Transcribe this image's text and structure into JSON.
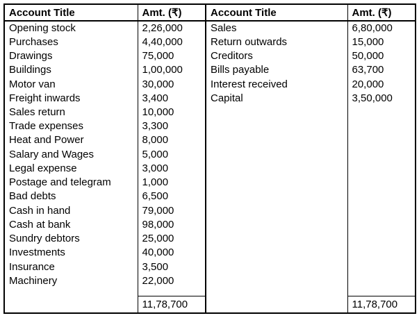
{
  "table": {
    "border_color": "#000000",
    "text_color": "#000000",
    "background_color": "#ffffff",
    "header": {
      "col1": "Account Title",
      "col2": "Amt. (₹)",
      "col3": "Account Title",
      "col4": "Amt. (₹)"
    },
    "rows": [
      {
        "left_title": "Opening stock",
        "left_amount": "2,26,000",
        "right_title": "Sales",
        "right_amount": "6,80,000"
      },
      {
        "left_title": "Purchases",
        "left_amount": "4,40,000",
        "right_title": "Return outwards",
        "right_amount": "15,000"
      },
      {
        "left_title": "Drawings",
        "left_amount": "75,000",
        "right_title": "Creditors",
        "right_amount": "50,000"
      },
      {
        "left_title": "Buildings",
        "left_amount": "1,00,000",
        "right_title": "Bills payable",
        "right_amount": "63,700"
      },
      {
        "left_title": "Motor van",
        "left_amount": "30,000",
        "right_title": "Interest received",
        "right_amount": "20,000"
      },
      {
        "left_title": "Freight inwards",
        "left_amount": "3,400",
        "right_title": "Capital",
        "right_amount": "3,50,000"
      },
      {
        "left_title": "Sales return",
        "left_amount": "10,000",
        "right_title": "",
        "right_amount": ""
      },
      {
        "left_title": "Trade expenses",
        "left_amount": "3,300",
        "right_title": "",
        "right_amount": ""
      },
      {
        "left_title": "Heat and Power",
        "left_amount": "8,000",
        "right_title": "",
        "right_amount": ""
      },
      {
        "left_title": "Salary and Wages",
        "left_amount": "5,000",
        "right_title": "",
        "right_amount": ""
      },
      {
        "left_title": "Legal expense",
        "left_amount": "3,000",
        "right_title": "",
        "right_amount": ""
      },
      {
        "left_title": "Postage and telegram",
        "left_amount": "1,000",
        "right_title": "",
        "right_amount": ""
      },
      {
        "left_title": "Bad debts",
        "left_amount": "6,500",
        "right_title": "",
        "right_amount": ""
      },
      {
        "left_title": "Cash in hand",
        "left_amount": "79,000",
        "right_title": "",
        "right_amount": ""
      },
      {
        "left_title": "Cash at bank",
        "left_amount": "98,000",
        "right_title": "",
        "right_amount": ""
      },
      {
        "left_title": "Sundry debtors",
        "left_amount": "25,000",
        "right_title": "",
        "right_amount": ""
      },
      {
        "left_title": "Investments",
        "left_amount": "40,000",
        "right_title": "",
        "right_amount": ""
      },
      {
        "left_title": "Insurance",
        "left_amount": "3,500",
        "right_title": "",
        "right_amount": ""
      },
      {
        "left_title": "Machinery",
        "left_amount": "22,000",
        "right_title": "",
        "right_amount": ""
      }
    ],
    "totals": {
      "left_amount": "11,78,700",
      "right_amount": "11,78,700"
    }
  }
}
